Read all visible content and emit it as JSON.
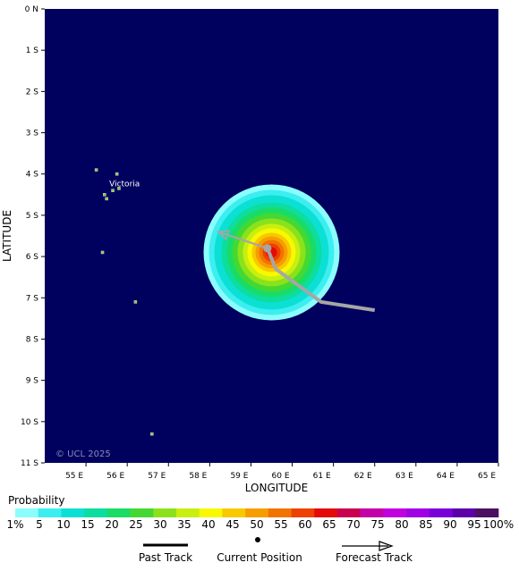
{
  "map": {
    "background": "#00005f",
    "copyright": "© UCL 2025",
    "place_label": "Victoria",
    "x_axis": {
      "title": "LONGITUDE",
      "ticks": [
        "55 E",
        "56 E",
        "57 E",
        "58 E",
        "59 E",
        "60 E",
        "61 E",
        "62 E",
        "63 E",
        "64 E",
        "65 E"
      ],
      "range": [
        54,
        65
      ]
    },
    "y_axis": {
      "title": "LATITUDE",
      "ticks": [
        "0 N",
        "1 S",
        "2 S",
        "3 S",
        "4 S",
        "5 S",
        "6 S",
        "7 S",
        "8 S",
        "9 S",
        "10 S",
        "11 S"
      ],
      "range": [
        0,
        -11
      ]
    }
  },
  "legend": {
    "title": "Probability",
    "labels": [
      "1%",
      "5",
      "10",
      "15",
      "20",
      "25",
      "30",
      "35",
      "40",
      "45",
      "50",
      "55",
      "60",
      "65",
      "70",
      "75",
      "80",
      "85",
      "90",
      "95",
      "100%"
    ],
    "colors": [
      "#8cfdfd",
      "#3ceef0",
      "#0ce0d5",
      "#0ddd9e",
      "#19dc66",
      "#45d833",
      "#8be21b",
      "#c8ef10",
      "#f8f800",
      "#f8c800",
      "#f79d00",
      "#f27300",
      "#ee4000",
      "#e30a08",
      "#c8004f",
      "#c300a8",
      "#c200de",
      "#a000e4",
      "#7a00d9",
      "#5c00a8",
      "#4c1060"
    ],
    "past_track_label": "Past Track",
    "current_position_label": "Current Position",
    "forecast_track_label": "Forecast Track"
  },
  "chart_data": {
    "type": "map",
    "current_position": {
      "lon": 59.4,
      "lat": -5.8
    },
    "past_track": [
      {
        "lon": 62.0,
        "lat": -7.3
      },
      {
        "lon": 60.7,
        "lat": -7.1
      },
      {
        "lon": 59.6,
        "lat": -6.3
      },
      {
        "lon": 59.4,
        "lat": -5.8
      }
    ],
    "forecast_track": [
      {
        "lon": 59.4,
        "lat": -5.8
      },
      {
        "lon": 58.2,
        "lat": -5.4
      }
    ],
    "strike_probability_center": {
      "lon": 59.5,
      "lat": -5.9
    },
    "islands": [
      {
        "lon": 55.5,
        "lat": -4.6
      },
      {
        "lon": 55.8,
        "lat": -4.35
      },
      {
        "lon": 55.45,
        "lat": -4.5
      },
      {
        "lon": 55.65,
        "lat": -4.4
      },
      {
        "lon": 55.75,
        "lat": -4.0
      },
      {
        "lon": 55.25,
        "lat": -3.9
      },
      {
        "lon": 55.4,
        "lat": -5.9
      },
      {
        "lon": 56.2,
        "lat": -7.1
      },
      {
        "lon": 56.6,
        "lat": -10.3
      }
    ]
  }
}
